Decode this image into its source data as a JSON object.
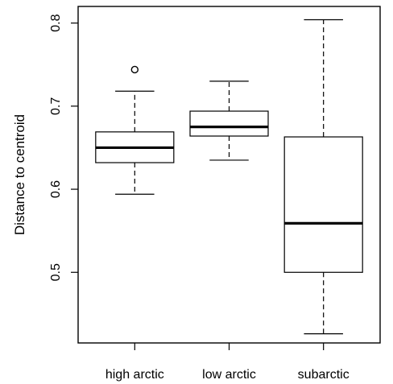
{
  "chart_data": {
    "type": "boxplot",
    "title": "",
    "xlabel": "",
    "ylabel": "Distance to centroid",
    "ylim": [
      0.415,
      0.82
    ],
    "yticks": [
      0.5,
      0.6,
      0.7,
      0.8
    ],
    "ytick_labels": [
      "0.5",
      "0.6",
      "0.7",
      "0.8"
    ],
    "categories": [
      "high arctic",
      "low arctic",
      "subarctic"
    ],
    "boxes": [
      {
        "name": "high arctic",
        "whisker_low": 0.594,
        "q1": 0.632,
        "median": 0.65,
        "q3": 0.669,
        "whisker_high": 0.718,
        "outliers": [
          0.744
        ]
      },
      {
        "name": "low arctic",
        "whisker_low": 0.635,
        "q1": 0.664,
        "median": 0.675,
        "q3": 0.694,
        "whisker_high": 0.73,
        "outliers": []
      },
      {
        "name": "subarctic",
        "whisker_low": 0.426,
        "q1": 0.5,
        "median": 0.559,
        "q3": 0.663,
        "whisker_high": 0.804,
        "outliers": []
      }
    ],
    "grid": false,
    "legend": "none",
    "colors": {
      "line": "#000000",
      "box_fill": "#ffffff"
    }
  }
}
